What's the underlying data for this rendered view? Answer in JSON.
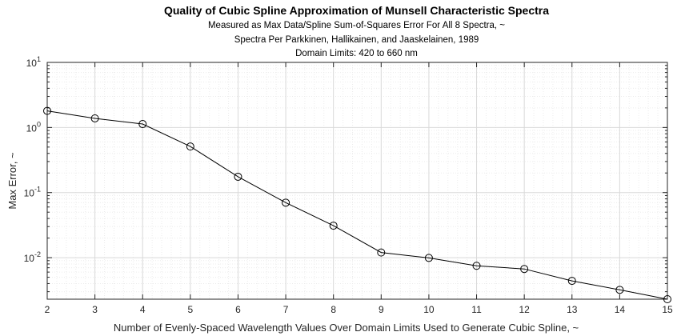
{
  "chart_data": {
    "type": "line",
    "title": "Quality of Cubic Spline Approximation of Munsell Characteristic Spectra",
    "subtitles": [
      "Measured as Max Data/Spline Sum-of-Squares Error For All 8 Spectra, ~",
      "Spectra Per Parkkinen, Hallikainen, and Jaaskelainen, 1989",
      "Domain Limits: 420 to 660 nm"
    ],
    "xlabel": "Number of Evenly-Spaced Wavelength Values Over Domain Limits Used to Generate Cubic Spline, ~",
    "ylabel": "Max Error, ~",
    "x": [
      2,
      3,
      4,
      5,
      6,
      7,
      8,
      9,
      10,
      11,
      12,
      13,
      14,
      15
    ],
    "y": [
      1.8,
      1.38,
      1.13,
      0.51,
      0.175,
      0.07,
      0.031,
      0.012,
      0.0099,
      0.0075,
      0.0067,
      0.0044,
      0.0032,
      0.0023
    ],
    "xlim": [
      2,
      15
    ],
    "ylim": [
      0.0023,
      10
    ],
    "yscale": "log",
    "grid": true,
    "minor_grid": true,
    "marker": "circle",
    "line_color": "#000000",
    "xticks": [
      "2",
      "3",
      "4",
      "5",
      "6",
      "7",
      "8",
      "9",
      "10",
      "11",
      "12",
      "13",
      "14",
      "15"
    ],
    "yticks": [
      {
        "base": "10",
        "exp": "1",
        "value": 10
      },
      {
        "base": "10",
        "exp": "0",
        "value": 1
      },
      {
        "base": "10",
        "exp": "-1",
        "value": 0.1
      },
      {
        "base": "10",
        "exp": "-2",
        "value": 0.01
      }
    ]
  }
}
